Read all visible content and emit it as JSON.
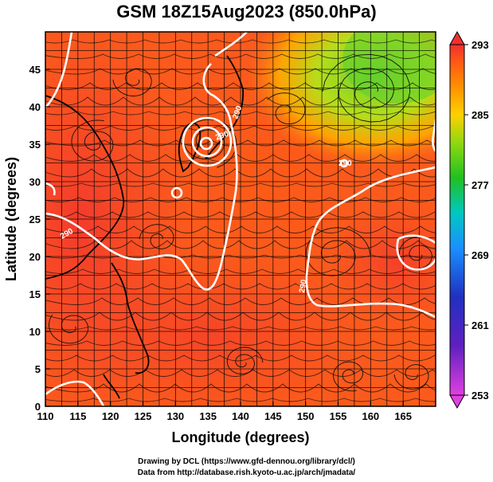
{
  "title": "GSM 18Z15Aug2023 (850.0hPa)",
  "xlabel": "Longitude (degrees)",
  "ylabel": "Latitude  (degrees)",
  "x_ticks": [
    "110",
    "115",
    "120",
    "125",
    "130",
    "135",
    "140",
    "145",
    "150",
    "155",
    "160",
    "165"
  ],
  "y_ticks": [
    "0",
    "5",
    "10",
    "15",
    "20",
    "25",
    "30",
    "35",
    "40",
    "45"
  ],
  "colorbar_ticks": [
    "293",
    "285",
    "277",
    "269",
    "261",
    "253"
  ],
  "contour_labels": [
    "290",
    "290",
    "290",
    "290",
    "290"
  ],
  "credits": {
    "line1": "Drawing by DCL (https://www.gfd-dennou.org/library/dcl/)",
    "line2": "Data from http://database.rish.kyoto-u.ac.jp/arch/jmadata/"
  },
  "chart_data": {
    "type": "heatmap",
    "title": "GSM 18Z15Aug2023 (850.0hPa)",
    "xlabel": "Longitude (degrees)",
    "ylabel": "Latitude  (degrees)",
    "xlim": [
      110,
      170
    ],
    "ylim": [
      0,
      50
    ],
    "color_scale": {
      "min": 253,
      "max": 293,
      "ticks": [
        293,
        285,
        277,
        269,
        261,
        253
      ]
    },
    "colormap": [
      "#e040e0",
      "#3030c0",
      "#1a90ff",
      "#00c8c0",
      "#20c020",
      "#c0e000",
      "#ffb000",
      "#ff6a1a",
      "#f03030"
    ],
    "overlays": [
      "streamlines",
      "coastlines",
      "290 contour (white)",
      "lat/lon grid"
    ],
    "contour_level": 290,
    "grid": true,
    "colorbar_position": "right"
  }
}
